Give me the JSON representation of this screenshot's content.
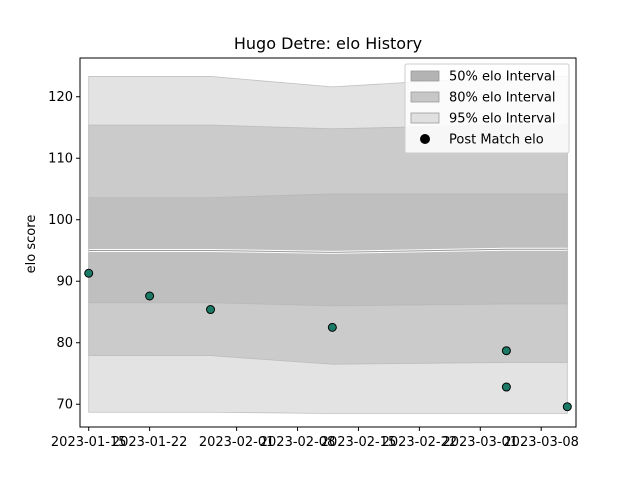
{
  "chart_data": {
    "type": "line",
    "title": "Hugo Detre: elo History",
    "xlabel": "",
    "ylabel": "elo score",
    "x_ticks": [
      "2023-01-15",
      "2023-01-22",
      "2023-02-01",
      "2023-02-08",
      "2023-02-15",
      "2023-02-22",
      "2023-03-01",
      "2023-03-08"
    ],
    "y_ticks": [
      70,
      80,
      90,
      100,
      110,
      120
    ],
    "xlim": [
      "2023-01-14",
      "2023-03-12"
    ],
    "ylim": [
      66.3,
      126.3
    ],
    "legend_position": "top-right",
    "band_x": [
      "2023-01-15",
      "2023-01-22",
      "2023-01-29",
      "2023-02-12",
      "2023-03-04",
      "2023-03-11"
    ],
    "mean": [
      95.0,
      95.0,
      95.0,
      94.7,
      95.2,
      95.2
    ],
    "bands": [
      {
        "name": "95% elo Interval",
        "color": "#e3e3e3",
        "lower": [
          68.7,
          68.7,
          68.7,
          68.5,
          68.5,
          68.5
        ],
        "upper": [
          123.3,
          123.3,
          123.3,
          121.6,
          123.3,
          123.3
        ]
      },
      {
        "name": "80% elo Interval",
        "color": "#cbcbcb",
        "lower": [
          77.9,
          77.9,
          77.9,
          76.5,
          76.8,
          76.8
        ],
        "upper": [
          115.4,
          115.4,
          115.4,
          114.8,
          115.4,
          115.4
        ]
      },
      {
        "name": "50% elo Interval",
        "color": "#bfbfbf",
        "lower": [
          86.5,
          86.5,
          86.5,
          86.0,
          86.3,
          86.3
        ],
        "upper": [
          103.6,
          103.6,
          103.6,
          104.2,
          104.2,
          104.2
        ]
      }
    ],
    "points_name": "Post Match elo",
    "points_color": "#1b7a66",
    "points": [
      {
        "x": "2023-01-15",
        "y": 91.3
      },
      {
        "x": "2023-01-22",
        "y": 87.6
      },
      {
        "x": "2023-01-29",
        "y": 85.4
      },
      {
        "x": "2023-02-12",
        "y": 82.5
      },
      {
        "x": "2023-03-04",
        "y": 78.7
      },
      {
        "x": "2023-03-04",
        "y": 72.8
      },
      {
        "x": "2023-03-11",
        "y": 69.6
      }
    ],
    "legend": [
      "50% elo Interval",
      "80% elo Interval",
      "95% elo Interval",
      "Post Match elo"
    ]
  }
}
